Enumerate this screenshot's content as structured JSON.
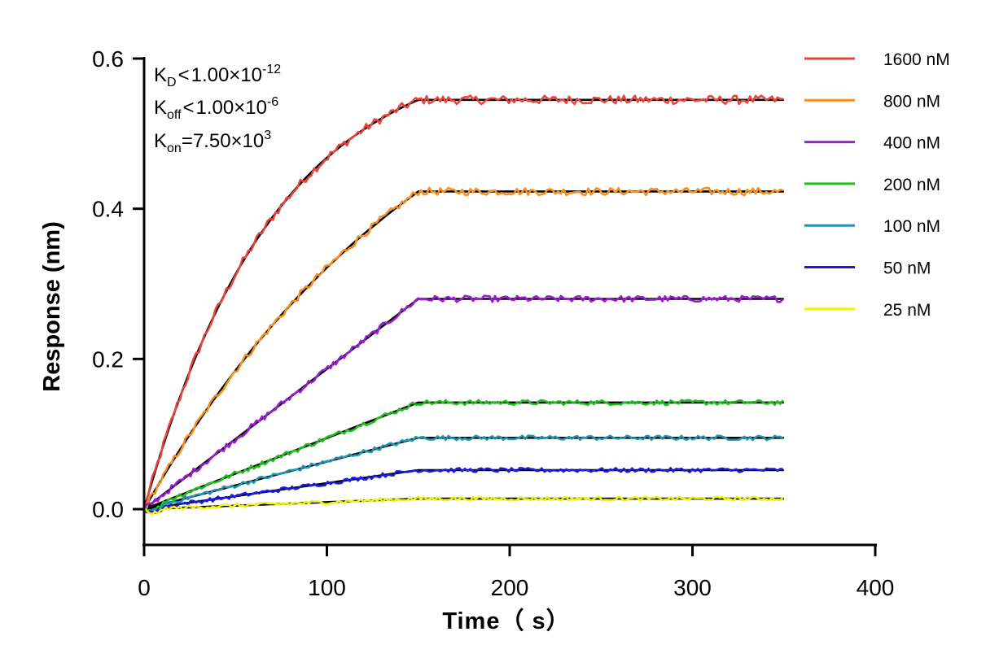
{
  "chart_data": {
    "type": "line",
    "xlabel": "Time（ s）",
    "ylabel": "Response (nm)",
    "xlim": [
      0,
      400
    ],
    "ylim": [
      -0.05,
      0.6
    ],
    "x_ticks": [
      "0",
      "100",
      "200",
      "300",
      "400"
    ],
    "y_ticks": [
      "0.0",
      "0.2",
      "0.4",
      "0.6"
    ],
    "grid": false,
    "legend_position": "top-right",
    "association_end": 150,
    "time_end": 350,
    "annotations": {
      "kd": {
        "base": "K",
        "sub": "D",
        "rel": "<",
        "value": "1.00×10",
        "exp": "-12"
      },
      "koff": {
        "base": "K",
        "sub": "off",
        "rel": "<",
        "value": "1.00×10",
        "exp": "-6"
      },
      "kon": {
        "base": "K",
        "sub": "on",
        "rel": "=",
        "value": "7.50×10",
        "exp": "3"
      }
    },
    "fit_color": "#000000",
    "series": [
      {
        "name": "1600 nM",
        "color": "#e8453c",
        "plateau": 0.545,
        "shape": "curved"
      },
      {
        "name": "800 nM",
        "color": "#f7901e",
        "plateau": 0.423,
        "shape": "mild"
      },
      {
        "name": "400 nM",
        "color": "#9b1fd1",
        "plateau": 0.28,
        "shape": "linear"
      },
      {
        "name": "200 nM",
        "color": "#1fbf1f",
        "plateau": 0.142,
        "shape": "linear"
      },
      {
        "name": "100 nM",
        "color": "#2196b4",
        "plateau": 0.095,
        "shape": "linear"
      },
      {
        "name": "50 nM",
        "color": "#1a1ae6",
        "plateau": 0.052,
        "shape": "linear"
      },
      {
        "name": "25 nM",
        "color": "#f2f20a",
        "plateau": 0.014,
        "shape": "linear"
      }
    ]
  }
}
